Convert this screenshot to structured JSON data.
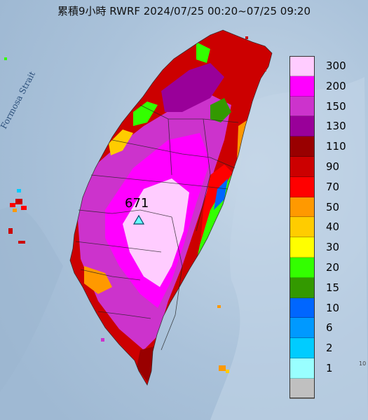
{
  "title": "累積9小時 RWRF 2024/07/25 00:20~07/25 09:20",
  "strait_label": "Formosa Strait",
  "max_value_label": "671",
  "corner_label": "10",
  "legend": [
    {
      "label": "300",
      "color": "#ffccff"
    },
    {
      "label": "200",
      "color": "#ff00ff"
    },
    {
      "label": "150",
      "color": "#cc33cc"
    },
    {
      "label": "130",
      "color": "#990099"
    },
    {
      "label": "110",
      "color": "#990000"
    },
    {
      "label": "90",
      "color": "#cc0000"
    },
    {
      "label": "70",
      "color": "#ff0000"
    },
    {
      "label": "50",
      "color": "#ff9900"
    },
    {
      "label": "40",
      "color": "#ffcc00"
    },
    {
      "label": "30",
      "color": "#ffff00"
    },
    {
      "label": "20",
      "color": "#33ff00"
    },
    {
      "label": "15",
      "color": "#339900"
    },
    {
      "label": "10",
      "color": "#0066ff"
    },
    {
      "label": "6",
      "color": "#0099ff"
    },
    {
      "label": "2",
      "color": "#00ccff"
    },
    {
      "label": "1",
      "color": "#99ffff"
    },
    {
      "label": "",
      "color": "#c0c0c0"
    }
  ]
}
